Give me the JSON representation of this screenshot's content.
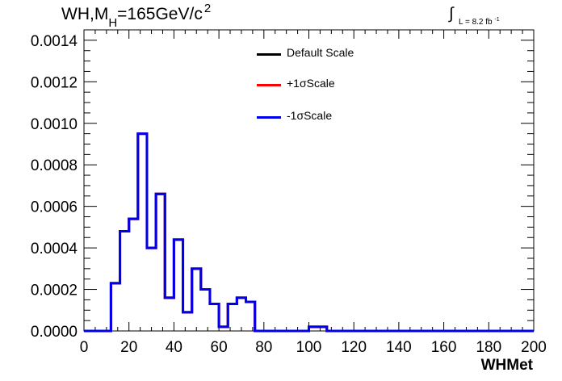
{
  "title": {
    "main": "WH,M",
    "sub": "H",
    "rest": "=165GeV/c",
    "sup": "2"
  },
  "lumi": {
    "integral": "∫",
    "text": "L = 8.2 fb",
    "sup": "-1"
  },
  "chart_data": {
    "type": "line",
    "subtype": "step-histogram",
    "xlabel": "WHMet",
    "ylabel": "",
    "xlim": [
      0,
      200
    ],
    "ylim": [
      0,
      0.00145
    ],
    "xticks": [
      0,
      20,
      40,
      60,
      80,
      100,
      120,
      140,
      160,
      180,
      200
    ],
    "yticks": [
      0.0,
      0.0002,
      0.0004,
      0.0006,
      0.0008,
      0.001,
      0.0012,
      0.0014
    ],
    "ytick_labels": [
      "0.0000",
      "0.0002",
      "0.0004",
      "0.0006",
      "0.0008",
      "0.0010",
      "0.0012",
      "0.0014"
    ],
    "bin_width": 4,
    "bin_edges_start": 0,
    "legend_position": "top-center",
    "series": [
      {
        "name": "Default Scale",
        "color": "#000000",
        "values": [
          0,
          0,
          0,
          0.00023,
          0.00048,
          0.00054,
          0.00095,
          0.0004,
          0.00066,
          0.00016,
          0.00044,
          9e-05,
          0.0003,
          0.0002,
          0.00013,
          2e-05,
          0.00013,
          0.00016,
          0.00014,
          0,
          0,
          0,
          0,
          0,
          0,
          2e-05,
          2e-05,
          0,
          0,
          0,
          0,
          0,
          0,
          0,
          0,
          0,
          0,
          0,
          0,
          0,
          0,
          0,
          0,
          0,
          0,
          0,
          0,
          0,
          0,
          0
        ]
      },
      {
        "name": "+1σScale",
        "color": "#ff0000",
        "values": [
          0,
          0,
          0,
          0.00023,
          0.00048,
          0.00054,
          0.00095,
          0.0004,
          0.00066,
          0.00016,
          0.00044,
          9e-05,
          0.0003,
          0.0002,
          0.00013,
          2e-05,
          0.00013,
          0.00016,
          0.00014,
          0,
          0,
          0,
          0,
          0,
          0,
          2e-05,
          2e-05,
          0,
          0,
          0,
          0,
          0,
          0,
          0,
          0,
          0,
          0,
          0,
          0,
          0,
          0,
          0,
          0,
          0,
          0,
          0,
          0,
          0,
          0,
          0
        ]
      },
      {
        "name": "-1σScale",
        "color": "#0000ee",
        "values": [
          0,
          0,
          0,
          0.00023,
          0.00048,
          0.00054,
          0.00095,
          0.0004,
          0.00066,
          0.00016,
          0.00044,
          9e-05,
          0.0003,
          0.0002,
          0.00013,
          2e-05,
          0.00013,
          0.00016,
          0.00014,
          0,
          0,
          0,
          0,
          0,
          0,
          2e-05,
          2e-05,
          0,
          0,
          0,
          0,
          0,
          0,
          0,
          0,
          0,
          0,
          0,
          0,
          0,
          0,
          0,
          0,
          0,
          0,
          0,
          0,
          0,
          0,
          0
        ]
      }
    ]
  }
}
